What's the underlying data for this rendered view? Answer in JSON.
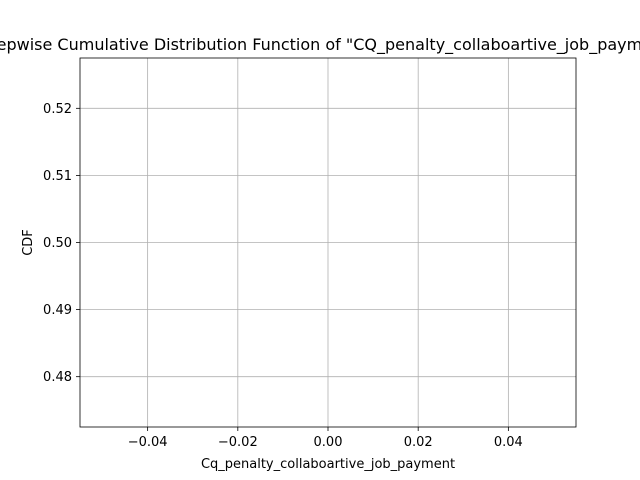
{
  "chart_data": {
    "type": "line",
    "title": "Stepwise Cumulative Distribution Function of \"CQ_penalty_collaboartive_job_payment\"",
    "xlabel": "Cq_penalty_collaboartive_job_payment",
    "ylabel": "CDF",
    "xlim": [
      -0.055,
      0.055
    ],
    "ylim": [
      0.4725,
      0.5275
    ],
    "xticks": [
      -0.04,
      -0.02,
      0.0,
      0.02,
      0.04
    ],
    "xtick_labels": [
      "−0.04",
      "−0.02",
      "0.00",
      "0.02",
      "0.04"
    ],
    "yticks": [
      0.48,
      0.49,
      0.5,
      0.51,
      0.52
    ],
    "ytick_labels": [
      "0.48",
      "0.49",
      "0.50",
      "0.51",
      "0.52"
    ],
    "grid": true,
    "series": []
  }
}
